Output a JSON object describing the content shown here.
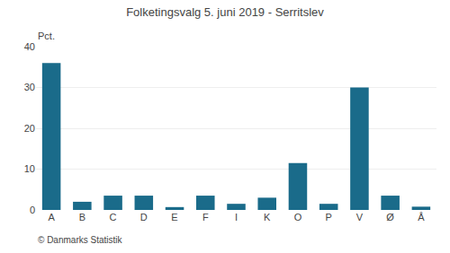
{
  "chart_data": {
    "type": "bar",
    "title": "Folketingsvalg 5. juni 2019 - Serritslev",
    "categories": [
      "A",
      "B",
      "C",
      "D",
      "E",
      "F",
      "I",
      "K",
      "O",
      "P",
      "V",
      "Ø",
      "Å"
    ],
    "values": [
      36,
      2,
      3.5,
      3.5,
      0.7,
      3.5,
      1.5,
      3,
      11.5,
      1.5,
      30,
      3.5,
      0.8
    ],
    "color": "#1a6b8a",
    "ylim": [
      0,
      40
    ],
    "yticks": [
      0,
      10,
      20,
      30,
      40
    ],
    "grid": true,
    "ylabel": "Pct.",
    "annotations": [
      "© Danmarks Statistik"
    ]
  }
}
